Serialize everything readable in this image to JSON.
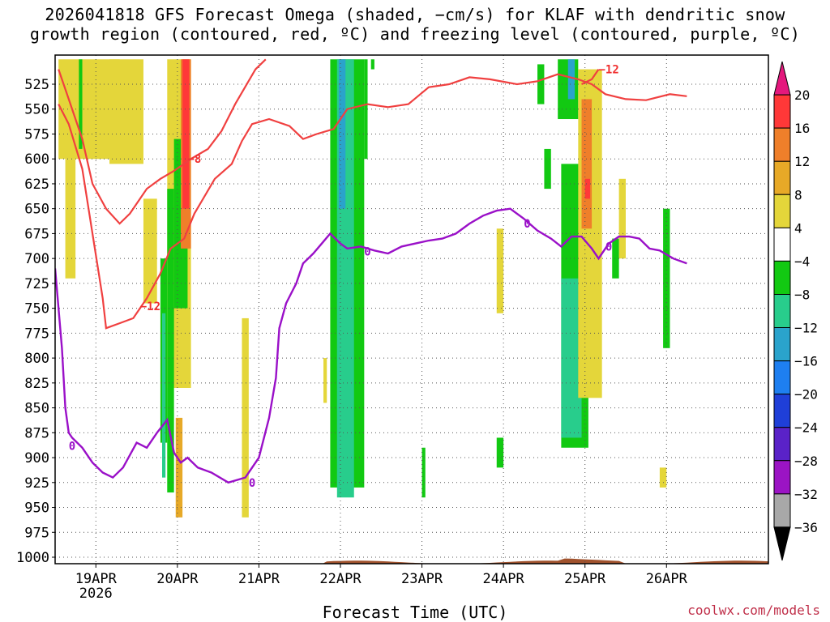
{
  "title": {
    "line1": "2026041818 GFS Forecast Omega (shaded, −cm/s) for KLAF with dendritic snow",
    "line2": "growth region (contoured, red, ºC) and freezing level (contoured, purple, ºC)"
  },
  "xlabel": "Forecast Time (UTC)",
  "credit": "coolwx.com/models",
  "chart_data": {
    "type": "heatmap",
    "variable": "Omega (−cm/s)",
    "x_axis": {
      "range_hours": [
        -18,
        192
      ],
      "ticks": [
        {
          "hour": -6,
          "label": "19APR",
          "sublabel": "2026"
        },
        {
          "hour": 18,
          "label": "20APR"
        },
        {
          "hour": 42,
          "label": "21APR"
        },
        {
          "hour": 66,
          "label": "22APR"
        },
        {
          "hour": 90,
          "label": "23APR"
        },
        {
          "hour": 114,
          "label": "24APR"
        },
        {
          "hour": 138,
          "label": "25APR"
        },
        {
          "hour": 162,
          "label": "26APR"
        }
      ]
    },
    "y_axis": {
      "range_hpa": [
        1010,
        500
      ],
      "ticks": [
        525,
        550,
        575,
        600,
        625,
        650,
        675,
        700,
        725,
        750,
        775,
        800,
        825,
        850,
        875,
        900,
        925,
        950,
        975,
        1000
      ]
    },
    "grid": true,
    "colorbar": {
      "labels": [
        "20",
        "16",
        "12",
        "8",
        "4",
        "−4",
        "−8",
        "−12",
        "−16",
        "−20",
        "−24",
        "−28",
        "−32",
        "−36"
      ],
      "colors": [
        "#e4187d",
        "#ff3838",
        "#ef7f2a",
        "#e7a927",
        "#e4d63a",
        "#ffffff",
        "#12c912",
        "#28cd8c",
        "#2aa3cc",
        "#1e7ff0",
        "#1f3fd8",
        "#5a22c8",
        "#9b14c4",
        "#a8a8a8",
        "#000000"
      ]
    },
    "omega_regions": [
      {
        "x": [
          -17,
          1
        ],
        "p": [
          500,
          600
        ],
        "color": "#e4d63a"
      },
      {
        "x": [
          -15,
          -12
        ],
        "p": [
          600,
          720
        ],
        "color": "#e4d63a"
      },
      {
        "x": [
          -11,
          -10
        ],
        "p": [
          500,
          590
        ],
        "color": "#12c912"
      },
      {
        "x": [
          -2,
          8
        ],
        "p": [
          500,
          605
        ],
        "color": "#e4d63a"
      },
      {
        "x": [
          8,
          12
        ],
        "p": [
          640,
          745
        ],
        "color": "#e4d63a"
      },
      {
        "x": [
          13,
          15
        ],
        "p": [
          700,
          885
        ],
        "color": "#12c912"
      },
      {
        "x": [
          13.5,
          14.5
        ],
        "p": [
          755,
          920
        ],
        "color": "#28cd8c"
      },
      {
        "x": [
          15,
          22
        ],
        "p": [
          500,
          830
        ],
        "color": "#e4d63a"
      },
      {
        "x": [
          15,
          17
        ],
        "p": [
          630,
          935
        ],
        "color": "#12c912"
      },
      {
        "x": [
          17,
          21
        ],
        "p": [
          580,
          750
        ],
        "color": "#12c912"
      },
      {
        "x": [
          19,
          22
        ],
        "p": [
          500,
          690
        ],
        "color": "#ef7f2a"
      },
      {
        "x": [
          19.5,
          21.5
        ],
        "p": [
          500,
          650
        ],
        "color": "#ff3838"
      },
      {
        "x": [
          17.5,
          19.5
        ],
        "p": [
          860,
          960
        ],
        "color": "#e7a927"
      },
      {
        "x": [
          37,
          39
        ],
        "p": [
          760,
          960
        ],
        "color": "#e4d63a"
      },
      {
        "x": [
          63,
          73
        ],
        "p": [
          500,
          930
        ],
        "color": "#12c912"
      },
      {
        "x": [
          65,
          70
        ],
        "p": [
          500,
          940
        ],
        "color": "#28cd8c"
      },
      {
        "x": [
          65.5,
          67.5
        ],
        "p": [
          500,
          650
        ],
        "color": "#2aa3cc"
      },
      {
        "x": [
          61,
          62
        ],
        "p": [
          800,
          845
        ],
        "color": "#e4d63a"
      },
      {
        "x": [
          73,
          74
        ],
        "p": [
          500,
          600
        ],
        "color": "#12c912"
      },
      {
        "x": [
          75,
          76
        ],
        "p": [
          500,
          510
        ],
        "color": "#12c912"
      },
      {
        "x": [
          90,
          91
        ],
        "p": [
          890,
          940
        ],
        "color": "#12c912"
      },
      {
        "x": [
          112,
          114
        ],
        "p": [
          670,
          755
        ],
        "color": "#e4d63a"
      },
      {
        "x": [
          112,
          114
        ],
        "p": [
          880,
          910
        ],
        "color": "#12c912"
      },
      {
        "x": [
          124,
          126
        ],
        "p": [
          505,
          545
        ],
        "color": "#12c912"
      },
      {
        "x": [
          126,
          128
        ],
        "p": [
          590,
          630
        ],
        "color": "#12c912"
      },
      {
        "x": [
          130,
          136
        ],
        "p": [
          500,
          560
        ],
        "color": "#12c912"
      },
      {
        "x": [
          133,
          135
        ],
        "p": [
          500,
          540
        ],
        "color": "#2aa3cc"
      },
      {
        "x": [
          131,
          139
        ],
        "p": [
          605,
          890
        ],
        "color": "#12c912"
      },
      {
        "x": [
          131,
          137
        ],
        "p": [
          720,
          880
        ],
        "color": "#28cd8c"
      },
      {
        "x": [
          136,
          143
        ],
        "p": [
          510,
          840
        ],
        "color": "#e4d63a"
      },
      {
        "x": [
          137,
          140
        ],
        "p": [
          540,
          670
        ],
        "color": "#ef7f2a"
      },
      {
        "x": [
          138,
          139.5
        ],
        "p": [
          620,
          640
        ],
        "color": "#ff3838"
      },
      {
        "x": [
          148,
          150
        ],
        "p": [
          620,
          700
        ],
        "color": "#e4d63a"
      },
      {
        "x": [
          146,
          148
        ],
        "p": [
          680,
          720
        ],
        "color": "#12c912"
      },
      {
        "x": [
          161,
          163
        ],
        "p": [
          650,
          790
        ],
        "color": "#12c912"
      },
      {
        "x": [
          160,
          162
        ],
        "p": [
          910,
          930
        ],
        "color": "#e4d63a"
      }
    ],
    "dendritic_contours": [
      {
        "label": "−8",
        "label_at": {
          "x": 21,
          "p": 600
        },
        "points": [
          [
            -17,
            510
          ],
          [
            -14,
            540
          ],
          [
            -10,
            580
          ],
          [
            -7,
            625
          ],
          [
            -3,
            650
          ],
          [
            1,
            665
          ],
          [
            4,
            655
          ],
          [
            9,
            630
          ],
          [
            13,
            620
          ],
          [
            17,
            612
          ],
          [
            22,
            600
          ],
          [
            27,
            590
          ],
          [
            31,
            572
          ],
          [
            35,
            545
          ],
          [
            41,
            510
          ],
          [
            44,
            500
          ]
        ]
      },
      {
        "label": "−12",
        "label_at": {
          "x": 7,
          "p": 748
        },
        "points": [
          [
            -17,
            545
          ],
          [
            -14,
            565
          ],
          [
            -10,
            610
          ],
          [
            -7,
            675
          ],
          [
            -4,
            740
          ],
          [
            -3,
            770
          ],
          [
            1,
            765
          ],
          [
            5,
            760
          ],
          [
            9,
            740
          ],
          [
            13,
            715
          ],
          [
            16,
            690
          ],
          [
            20,
            680
          ],
          [
            23,
            655
          ],
          [
            29,
            620
          ],
          [
            34,
            605
          ],
          [
            37,
            582
          ],
          [
            40,
            565
          ],
          [
            45,
            560
          ],
          [
            51,
            567
          ],
          [
            55,
            580
          ],
          [
            59,
            575
          ],
          [
            64,
            570
          ],
          [
            68,
            550
          ],
          [
            74,
            545
          ],
          [
            80,
            548
          ],
          [
            86,
            545
          ],
          [
            92,
            528
          ],
          [
            98,
            525
          ],
          [
            104,
            518
          ],
          [
            110,
            520
          ],
          [
            118,
            525
          ],
          [
            124,
            522
          ],
          [
            130,
            515
          ],
          [
            136,
            520
          ],
          [
            140,
            525
          ],
          [
            144,
            535
          ],
          [
            150,
            540
          ],
          [
            156,
            541
          ],
          [
            163,
            535
          ],
          [
            168,
            537
          ]
        ]
      },
      {
        "label": "−12",
        "label_at": {
          "x": 142,
          "p": 510
        },
        "points": [
          [
            137,
            525
          ],
          [
            140,
            520
          ],
          [
            142,
            510
          ]
        ]
      }
    ],
    "freezing_level": {
      "label": "0",
      "label_positions": [
        {
          "x": -13,
          "p": 888
        },
        {
          "x": 40,
          "p": 925
        },
        {
          "x": 74,
          "p": 693
        },
        {
          "x": 121,
          "p": 665
        },
        {
          "x": 145,
          "p": 688
        }
      ],
      "points": [
        [
          -18,
          710
        ],
        [
          -16,
          790
        ],
        [
          -15,
          850
        ],
        [
          -14,
          875
        ],
        [
          -13,
          880
        ],
        [
          -10,
          890
        ],
        [
          -7,
          905
        ],
        [
          -4,
          915
        ],
        [
          -1,
          920
        ],
        [
          2,
          910
        ],
        [
          6,
          885
        ],
        [
          9,
          890
        ],
        [
          12,
          875
        ],
        [
          15,
          862
        ],
        [
          17,
          895
        ],
        [
          19,
          905
        ],
        [
          21,
          900
        ],
        [
          24,
          910
        ],
        [
          28,
          915
        ],
        [
          33,
          925
        ],
        [
          38,
          920
        ],
        [
          42,
          900
        ],
        [
          45,
          860
        ],
        [
          47,
          820
        ],
        [
          48,
          770
        ],
        [
          50,
          745
        ],
        [
          53,
          725
        ],
        [
          55,
          705
        ],
        [
          58,
          695
        ],
        [
          61,
          683
        ],
        [
          63,
          675
        ],
        [
          66,
          685
        ],
        [
          68,
          690
        ],
        [
          72,
          688
        ],
        [
          76,
          692
        ],
        [
          80,
          695
        ],
        [
          84,
          688
        ],
        [
          88,
          685
        ],
        [
          92,
          682
        ],
        [
          96,
          680
        ],
        [
          100,
          675
        ],
        [
          104,
          665
        ],
        [
          108,
          657
        ],
        [
          112,
          652
        ],
        [
          116,
          650
        ],
        [
          120,
          660
        ],
        [
          124,
          672
        ],
        [
          128,
          680
        ],
        [
          131,
          688
        ],
        [
          134,
          678
        ],
        [
          137,
          678
        ],
        [
          140,
          690
        ],
        [
          142,
          700
        ],
        [
          145,
          685
        ],
        [
          148,
          678
        ],
        [
          151,
          678
        ],
        [
          154,
          680
        ],
        [
          157,
          690
        ],
        [
          160,
          692
        ],
        [
          164,
          700
        ],
        [
          168,
          705
        ]
      ]
    },
    "terrain_hpa": 1010
  }
}
